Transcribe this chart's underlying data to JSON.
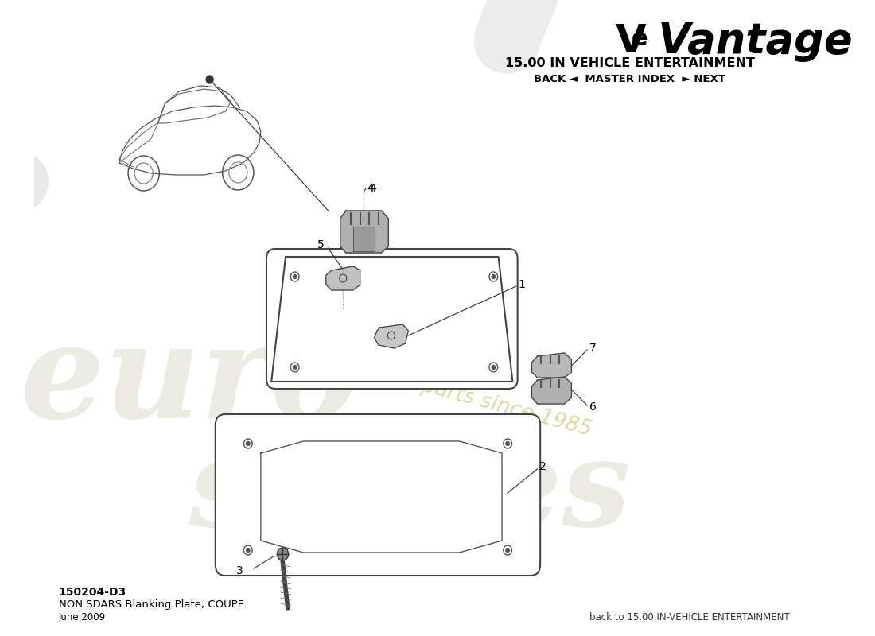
{
  "title_line1": "Vé Vantage",
  "section_title": "15.00 IN VEHICLE ENTERTAINMENT",
  "nav_text": "BACK ◄  MASTER INDEX  ► NEXT",
  "part_number": "150204-D3",
  "part_name": "NON SDARS Blanking Plate, COUPE",
  "date": "June 2009",
  "footer_text": "back to 15.00 IN-VEHICLE ENTERTAINMENT",
  "bg_color": "#ffffff",
  "line_color": "#444444",
  "watermark_swirl_color": "#d5d5d5",
  "watermark_text_color": "#c8c8b0",
  "passion_text_color": "#d4d490"
}
